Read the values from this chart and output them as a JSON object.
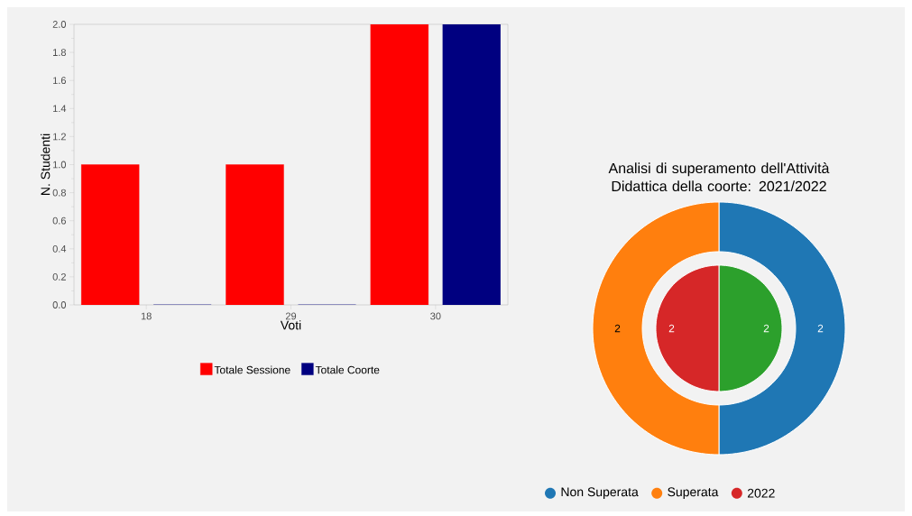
{
  "chart_data": [
    {
      "type": "bar",
      "xlabel": "Voti",
      "ylabel": "N. Studenti",
      "categories": [
        "18",
        "29",
        "30"
      ],
      "series": [
        {
          "name": "Totale Sessione",
          "color": "#ff0000",
          "values": [
            1,
            1,
            2
          ]
        },
        {
          "name": "Totale Coorte",
          "color": "#000080",
          "values": [
            0,
            0,
            2
          ]
        }
      ],
      "ylim": [
        0,
        2
      ],
      "yticks": [
        {
          "value": 0,
          "label": "0.0"
        },
        {
          "value": 0.2,
          "label": "0.2"
        },
        {
          "value": 0.4,
          "label": "0.4"
        },
        {
          "value": 0.6,
          "label": "0.6"
        },
        {
          "value": 0.8,
          "label": "0.8"
        },
        {
          "value": 1,
          "label": "1.0"
        },
        {
          "value": 1.2,
          "label": "1.2"
        },
        {
          "value": 1.4,
          "label": "1.4"
        },
        {
          "value": 1.6,
          "label": "1.6"
        },
        {
          "value": 1.8,
          "label": "1.8"
        },
        {
          "value": 2,
          "label": "2.0"
        }
      ],
      "legend": "bottom"
    },
    {
      "type": "donut",
      "title": "Analisi di superamento dell'Attività Didattica della coorte: 2021/2022",
      "categories": [
        "Non Superata",
        "Superata"
      ],
      "series": [
        {
          "values": [
            2,
            2
          ],
          "colors": [
            "#1f77b4",
            "#ff7f0e"
          ]
        },
        {
          "name": "2022",
          "color": "#d62728",
          "values": [
            2,
            2
          ],
          "colors": [
            "#2ca02c",
            "#d62728"
          ]
        }
      ],
      "data_labels": true,
      "legend": "bottom"
    }
  ]
}
